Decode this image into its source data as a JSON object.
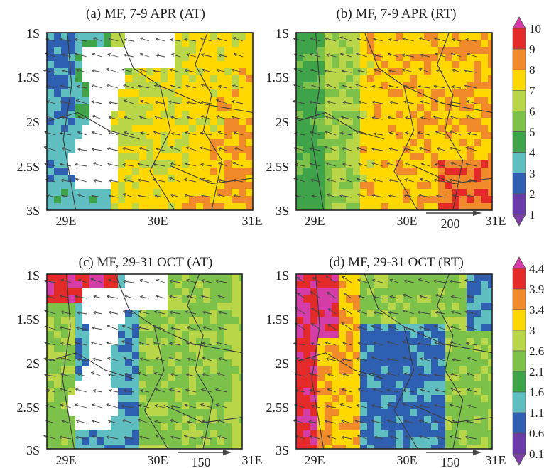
{
  "panels": [
    {
      "id": "a",
      "title": "(a) MF, 7-9 APR (AT)",
      "region": "west",
      "season": "apr",
      "y_ticks": [
        "1S",
        "1.5S",
        "2S",
        "2.5S",
        "3S"
      ],
      "x_ticks": [
        "29E",
        "30E",
        "31E"
      ],
      "ref_arrow_label": ""
    },
    {
      "id": "b",
      "title": "(b) MF, 7-9 APR (RT)",
      "region": "east",
      "season": "apr",
      "y_ticks": [
        "1S",
        "1.5S",
        "2S",
        "2.5S",
        "3S"
      ],
      "x_ticks": [
        "29E",
        "30E",
        "31E"
      ],
      "ref_arrow_label": "200"
    },
    {
      "id": "c",
      "title": "(c) MF, 29-31 OCT (AT)",
      "region": "west",
      "season": "oct",
      "y_ticks": [
        "1S",
        "1.5S",
        "2S",
        "2.5S",
        "3S"
      ],
      "x_ticks": [
        "29E",
        "30E",
        "31E"
      ],
      "ref_arrow_label": "150"
    },
    {
      "id": "d",
      "title": "(d) MF, 29-31 OCT (RT)",
      "region": "east",
      "season": "oct",
      "y_ticks": [
        "1S",
        "1.5S",
        "2S",
        "2.5S",
        "3S"
      ],
      "x_ticks": [
        "29E",
        "30E",
        "31E"
      ],
      "ref_arrow_label": "150"
    }
  ],
  "colorbars": [
    {
      "id": "apr",
      "labels": [
        "10",
        "9",
        "8",
        "7",
        "6",
        "5",
        "4",
        "3",
        "2",
        "1"
      ],
      "colors": [
        "#d43ca8",
        "#e52a2a",
        "#f08a2a",
        "#ffd800",
        "#b8d648",
        "#7cc24a",
        "#3fa34a",
        "#5fbfc0",
        "#2f5fb0",
        "#6a3aa8",
        "#7b3fa6"
      ]
    },
    {
      "id": "oct",
      "labels": [
        "4.4",
        "3.9",
        "3.4",
        "3",
        "2.6",
        "2.1",
        "1.6",
        "1.1",
        "0.6",
        "0.1"
      ],
      "colors": [
        "#d43ca8",
        "#e52a2a",
        "#f08a2a",
        "#ffd800",
        "#b8d648",
        "#7cc24a",
        "#3fa34a",
        "#5fbfc0",
        "#2f5fb0",
        "#6a3aa8",
        "#7b3fa6"
      ]
    }
  ],
  "colors": {
    "mask": "#ffffff",
    "boundary": "#3a3a3a",
    "arrow": "#444444",
    "frame": "#222222"
  }
}
